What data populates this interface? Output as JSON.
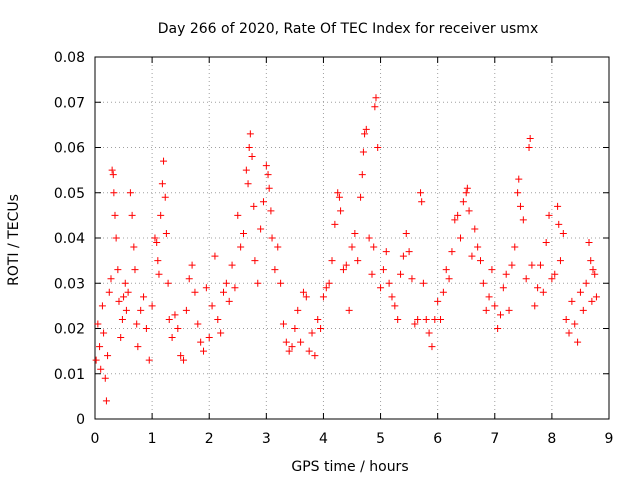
{
  "chart_data": {
    "type": "scatter",
    "title": "Day 266 of 2020, Rate Of TEC Index for receiver usmx",
    "xlabel": "GPS time / hours",
    "ylabel": "ROTI / TECUs",
    "xlim": [
      0,
      9
    ],
    "ylim": [
      0,
      0.08
    ],
    "x_ticks": [
      "0",
      "1",
      "2",
      "3",
      "4",
      "5",
      "6",
      "7",
      "8",
      "9"
    ],
    "y_ticks": [
      "0",
      "0.01",
      "0.02",
      "0.03",
      "0.04",
      "0.05",
      "0.06",
      "0.07",
      "0.08"
    ],
    "grid": true,
    "marker": "+",
    "series": [
      {
        "name": "ROTI",
        "color": "#ff0000",
        "points": [
          [
            0.02,
            0.013
          ],
          [
            0.05,
            0.021
          ],
          [
            0.08,
            0.016
          ],
          [
            0.1,
            0.011
          ],
          [
            0.13,
            0.025
          ],
          [
            0.15,
            0.019
          ],
          [
            0.18,
            0.009
          ],
          [
            0.2,
            0.004
          ],
          [
            0.22,
            0.014
          ],
          [
            0.25,
            0.028
          ],
          [
            0.28,
            0.031
          ],
          [
            0.3,
            0.055
          ],
          [
            0.32,
            0.054
          ],
          [
            0.33,
            0.05
          ],
          [
            0.35,
            0.045
          ],
          [
            0.37,
            0.04
          ],
          [
            0.4,
            0.033
          ],
          [
            0.42,
            0.026
          ],
          [
            0.45,
            0.018
          ],
          [
            0.48,
            0.022
          ],
          [
            0.5,
            0.027
          ],
          [
            0.53,
            0.03
          ],
          [
            0.55,
            0.024
          ],
          [
            0.58,
            0.028
          ],
          [
            0.62,
            0.05
          ],
          [
            0.65,
            0.045
          ],
          [
            0.68,
            0.038
          ],
          [
            0.7,
            0.033
          ],
          [
            0.73,
            0.021
          ],
          [
            0.75,
            0.016
          ],
          [
            0.8,
            0.024
          ],
          [
            0.85,
            0.027
          ],
          [
            0.9,
            0.02
          ],
          [
            0.95,
            0.013
          ],
          [
            1.0,
            0.025
          ],
          [
            1.05,
            0.04
          ],
          [
            1.08,
            0.039
          ],
          [
            1.1,
            0.035
          ],
          [
            1.12,
            0.032
          ],
          [
            1.15,
            0.045
          ],
          [
            1.18,
            0.052
          ],
          [
            1.2,
            0.057
          ],
          [
            1.23,
            0.049
          ],
          [
            1.25,
            0.041
          ],
          [
            1.28,
            0.03
          ],
          [
            1.3,
            0.022
          ],
          [
            1.35,
            0.018
          ],
          [
            1.4,
            0.023
          ],
          [
            1.45,
            0.02
          ],
          [
            1.5,
            0.014
          ],
          [
            1.55,
            0.013
          ],
          [
            1.6,
            0.024
          ],
          [
            1.65,
            0.031
          ],
          [
            1.7,
            0.034
          ],
          [
            1.75,
            0.028
          ],
          [
            1.8,
            0.021
          ],
          [
            1.85,
            0.017
          ],
          [
            1.9,
            0.015
          ],
          [
            1.95,
            0.029
          ],
          [
            2.0,
            0.018
          ],
          [
            2.05,
            0.025
          ],
          [
            2.1,
            0.036
          ],
          [
            2.15,
            0.022
          ],
          [
            2.2,
            0.019
          ],
          [
            2.25,
            0.028
          ],
          [
            2.3,
            0.03
          ],
          [
            2.35,
            0.026
          ],
          [
            2.4,
            0.034
          ],
          [
            2.45,
            0.029
          ],
          [
            2.5,
            0.045
          ],
          [
            2.55,
            0.038
          ],
          [
            2.6,
            0.041
          ],
          [
            2.65,
            0.055
          ],
          [
            2.68,
            0.052
          ],
          [
            2.7,
            0.06
          ],
          [
            2.72,
            0.063
          ],
          [
            2.75,
            0.058
          ],
          [
            2.78,
            0.047
          ],
          [
            2.8,
            0.035
          ],
          [
            2.85,
            0.03
          ],
          [
            2.9,
            0.042
          ],
          [
            2.95,
            0.048
          ],
          [
            3.0,
            0.056
          ],
          [
            3.03,
            0.054
          ],
          [
            3.05,
            0.051
          ],
          [
            3.08,
            0.046
          ],
          [
            3.1,
            0.04
          ],
          [
            3.15,
            0.033
          ],
          [
            3.2,
            0.038
          ],
          [
            3.25,
            0.03
          ],
          [
            3.3,
            0.021
          ],
          [
            3.35,
            0.017
          ],
          [
            3.4,
            0.015
          ],
          [
            3.45,
            0.016
          ],
          [
            3.5,
            0.02
          ],
          [
            3.55,
            0.024
          ],
          [
            3.6,
            0.017
          ],
          [
            3.65,
            0.028
          ],
          [
            3.7,
            0.027
          ],
          [
            3.75,
            0.015
          ],
          [
            3.8,
            0.019
          ],
          [
            3.85,
            0.014
          ],
          [
            3.9,
            0.022
          ],
          [
            3.95,
            0.02
          ],
          [
            4.0,
            0.027
          ],
          [
            4.05,
            0.029
          ],
          [
            4.1,
            0.03
          ],
          [
            4.15,
            0.035
          ],
          [
            4.2,
            0.043
          ],
          [
            4.25,
            0.05
          ],
          [
            4.28,
            0.049
          ],
          [
            4.3,
            0.046
          ],
          [
            4.35,
            0.033
          ],
          [
            4.4,
            0.034
          ],
          [
            4.45,
            0.024
          ],
          [
            4.5,
            0.038
          ],
          [
            4.55,
            0.041
          ],
          [
            4.6,
            0.035
          ],
          [
            4.65,
            0.049
          ],
          [
            4.68,
            0.054
          ],
          [
            4.7,
            0.059
          ],
          [
            4.72,
            0.063
          ],
          [
            4.75,
            0.064
          ],
          [
            4.8,
            0.04
          ],
          [
            4.85,
            0.032
          ],
          [
            4.88,
            0.038
          ],
          [
            4.9,
            0.069
          ],
          [
            4.92,
            0.071
          ],
          [
            4.95,
            0.06
          ],
          [
            5.0,
            0.029
          ],
          [
            5.05,
            0.033
          ],
          [
            5.1,
            0.037
          ],
          [
            5.15,
            0.03
          ],
          [
            5.2,
            0.027
          ],
          [
            5.25,
            0.025
          ],
          [
            5.3,
            0.022
          ],
          [
            5.35,
            0.032
          ],
          [
            5.4,
            0.036
          ],
          [
            5.45,
            0.041
          ],
          [
            5.5,
            0.037
          ],
          [
            5.55,
            0.031
          ],
          [
            5.6,
            0.021
          ],
          [
            5.65,
            0.022
          ],
          [
            5.7,
            0.05
          ],
          [
            5.72,
            0.048
          ],
          [
            5.75,
            0.03
          ],
          [
            5.8,
            0.022
          ],
          [
            5.85,
            0.019
          ],
          [
            5.9,
            0.016
          ],
          [
            5.95,
            0.022
          ],
          [
            6.0,
            0.026
          ],
          [
            6.05,
            0.022
          ],
          [
            6.1,
            0.028
          ],
          [
            6.15,
            0.033
          ],
          [
            6.2,
            0.031
          ],
          [
            6.25,
            0.037
          ],
          [
            6.3,
            0.044
          ],
          [
            6.35,
            0.045
          ],
          [
            6.4,
            0.04
          ],
          [
            6.45,
            0.048
          ],
          [
            6.5,
            0.05
          ],
          [
            6.52,
            0.051
          ],
          [
            6.55,
            0.046
          ],
          [
            6.6,
            0.036
          ],
          [
            6.65,
            0.042
          ],
          [
            6.7,
            0.038
          ],
          [
            6.75,
            0.035
          ],
          [
            6.8,
            0.03
          ],
          [
            6.85,
            0.024
          ],
          [
            6.9,
            0.027
          ],
          [
            6.95,
            0.033
          ],
          [
            7.0,
            0.025
          ],
          [
            7.05,
            0.02
          ],
          [
            7.1,
            0.023
          ],
          [
            7.15,
            0.029
          ],
          [
            7.2,
            0.032
          ],
          [
            7.25,
            0.024
          ],
          [
            7.3,
            0.034
          ],
          [
            7.35,
            0.038
          ],
          [
            7.4,
            0.05
          ],
          [
            7.42,
            0.053
          ],
          [
            7.45,
            0.047
          ],
          [
            7.5,
            0.044
          ],
          [
            7.55,
            0.031
          ],
          [
            7.6,
            0.06
          ],
          [
            7.62,
            0.062
          ],
          [
            7.65,
            0.034
          ],
          [
            7.7,
            0.025
          ],
          [
            7.75,
            0.029
          ],
          [
            7.8,
            0.034
          ],
          [
            7.85,
            0.028
          ],
          [
            7.9,
            0.039
          ],
          [
            7.95,
            0.045
          ],
          [
            8.0,
            0.031
          ],
          [
            8.05,
            0.032
          ],
          [
            8.1,
            0.047
          ],
          [
            8.12,
            0.043
          ],
          [
            8.15,
            0.035
          ],
          [
            8.2,
            0.041
          ],
          [
            8.25,
            0.022
          ],
          [
            8.3,
            0.019
          ],
          [
            8.35,
            0.026
          ],
          [
            8.4,
            0.021
          ],
          [
            8.45,
            0.017
          ],
          [
            8.5,
            0.028
          ],
          [
            8.55,
            0.024
          ],
          [
            8.6,
            0.03
          ],
          [
            8.65,
            0.039
          ],
          [
            8.68,
            0.035
          ],
          [
            8.7,
            0.026
          ],
          [
            8.72,
            0.033
          ],
          [
            8.75,
            0.032
          ],
          [
            8.78,
            0.027
          ]
        ]
      }
    ]
  }
}
